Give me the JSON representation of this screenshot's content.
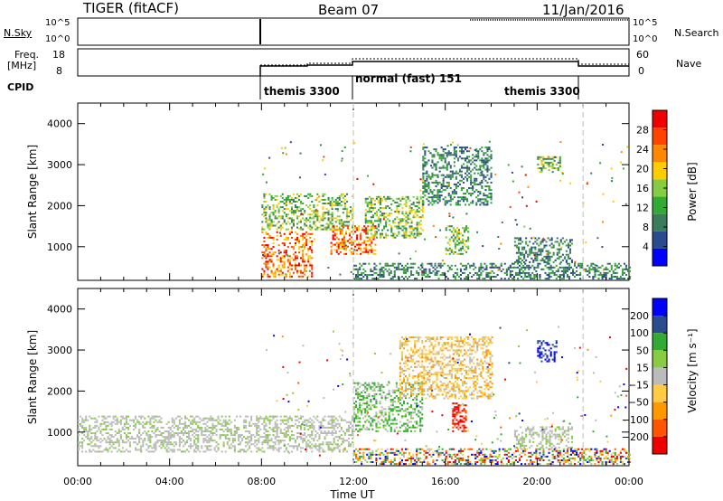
{
  "header": {
    "radar": "TIGER (fitACF)",
    "beam": "Beam 07",
    "date": "11/Jan/2016"
  },
  "top_panels": {
    "nsky_label": "N.Sky",
    "nsky_ticks": [
      "10^5",
      "10^0"
    ],
    "nsearch_label": "N.Search",
    "nsearch_ticks": [
      "10^5",
      "10^0"
    ],
    "freq_label": "Freq.",
    "freq_unit": "[MHz]",
    "freq_ticks": [
      "18",
      "8"
    ],
    "nave_label": "Nave",
    "nave_ticks": [
      "60",
      "0"
    ],
    "cpid_label": "CPID",
    "cpid_segments": [
      {
        "start_hour": 8,
        "end_hour": 12,
        "label": "themis 3300"
      },
      {
        "start_hour": 12,
        "end_hour": 22,
        "label": "normal (fast) 151"
      },
      {
        "start_hour": 16,
        "end_hour": 22,
        "label": "themis 3300"
      }
    ]
  },
  "colors": {
    "power": [
      "#0000ff",
      "#2a4b8d",
      "#3a7d5a",
      "#33aa33",
      "#88cc44",
      "#ffcc00",
      "#ff8800",
      "#ff4400",
      "#ee0000"
    ],
    "velocity": [
      "#ee0000",
      "#ff5500",
      "#ff9900",
      "#ffcc44",
      "#bbbbbb",
      "#88cc44",
      "#33aa33",
      "#2a4b8d",
      "#0000ff"
    ]
  },
  "chart_data": [
    {
      "type": "heatmap",
      "name": "power",
      "ylabel": "Slant Range [km]",
      "xlabel": "",
      "x_ticks": [
        "00:00",
        "04:00",
        "08:00",
        "12:00",
        "16:00",
        "20:00",
        "00:00"
      ],
      "xlim_hours": [
        0,
        24
      ],
      "ylim_km": [
        180,
        4500
      ],
      "y_ticks": [
        1000,
        2000,
        3000,
        4000
      ],
      "colorbar_label": "Power [dB]",
      "colorbar_ticks": [
        28,
        24,
        20,
        16,
        12,
        8,
        4
      ],
      "regions": [
        {
          "t0": 8.0,
          "t1": 10.2,
          "r0": 250,
          "r1": 1350,
          "c": "hi"
        },
        {
          "t0": 8.0,
          "t1": 12.0,
          "r0": 1400,
          "r1": 2300,
          "c": "mid"
        },
        {
          "t0": 11.0,
          "t1": 13.0,
          "r0": 800,
          "r1": 1500,
          "c": "hi"
        },
        {
          "t0": 12.5,
          "t1": 15.0,
          "r0": 1200,
          "r1": 2200,
          "c": "mid"
        },
        {
          "t0": 15.0,
          "t1": 18.0,
          "r0": 2000,
          "r1": 3400,
          "c": "lo"
        },
        {
          "t0": 16.0,
          "t1": 17.0,
          "r0": 800,
          "r1": 1500,
          "c": "mid"
        },
        {
          "t0": 19.0,
          "t1": 21.5,
          "r0": 600,
          "r1": 1200,
          "c": "lo"
        },
        {
          "t0": 20.0,
          "t1": 21.0,
          "r0": 2800,
          "r1": 3200,
          "c": "mid"
        },
        {
          "t0": 12.0,
          "t1": 24.0,
          "r0": 200,
          "r1": 600,
          "c": "lo"
        }
      ]
    },
    {
      "type": "heatmap",
      "name": "velocity",
      "ylabel": "Slant Range [km]",
      "xlabel": "Time UT",
      "x_ticks": [
        "00:00",
        "04:00",
        "08:00",
        "12:00",
        "16:00",
        "20:00",
        "00:00"
      ],
      "xlim_hours": [
        0,
        24
      ],
      "ylim_km": [
        180,
        4500
      ],
      "y_ticks": [
        1000,
        2000,
        3000,
        4000
      ],
      "colorbar_label": "Velocity [m s⁻¹]",
      "colorbar_ticks": [
        "200",
        "100",
        "50",
        "15",
        "−15",
        "−50",
        "−100",
        "−200"
      ],
      "regions": [
        {
          "t0": 0.0,
          "t1": 12.0,
          "r0": 500,
          "r1": 1400,
          "c": "gray"
        },
        {
          "t0": 12.0,
          "t1": 15.0,
          "r0": 1000,
          "r1": 2200,
          "c": "green"
        },
        {
          "t0": 14.0,
          "t1": 18.0,
          "r0": 1800,
          "r1": 3300,
          "c": "orange"
        },
        {
          "t0": 16.3,
          "t1": 16.9,
          "r0": 1000,
          "r1": 1700,
          "c": "red"
        },
        {
          "t0": 20.0,
          "t1": 20.8,
          "r0": 2700,
          "r1": 3200,
          "c": "blue"
        },
        {
          "t0": 19.0,
          "t1": 21.5,
          "r0": 600,
          "r1": 1100,
          "c": "gray"
        },
        {
          "t0": 12.0,
          "t1": 24.0,
          "r0": 200,
          "r1": 600,
          "c": "mixed"
        }
      ]
    }
  ]
}
